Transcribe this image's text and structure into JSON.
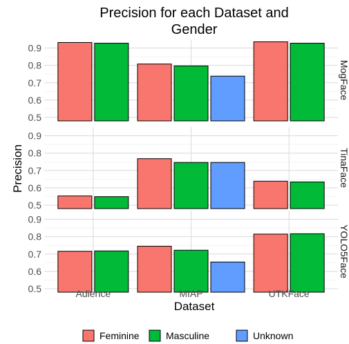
{
  "chart_data": {
    "type": "bar",
    "title": "Precision for each Dataset and Gender",
    "title_lines": [
      "Precision for each Dataset and",
      "Gender"
    ],
    "xlabel": "Dataset",
    "ylabel": "Precision",
    "categories": [
      "Adience",
      "MIAP",
      "UTKFace"
    ],
    "y_ticks": [
      "0.5",
      "0.6",
      "0.7",
      "0.8",
      "0.9"
    ],
    "ylim": [
      0.48,
      0.95
    ],
    "legend_position": "bottom",
    "legend": [
      {
        "name": "Feminine",
        "color": "#F8766D"
      },
      {
        "name": "Masculine",
        "color": "#00BA38"
      },
      {
        "name": "Unknown",
        "color": "#619CFF"
      }
    ],
    "panels": [
      {
        "label": "MogFace",
        "values": {
          "Adience": [
            0.932,
            0.928,
            null
          ],
          "MIAP": [
            0.808,
            0.797,
            0.738
          ],
          "UTKFace": [
            0.936,
            0.928,
            null
          ]
        }
      },
      {
        "label": "TinaFace",
        "values": {
          "Adience": [
            0.553,
            0.549,
            null
          ],
          "MIAP": [
            0.768,
            0.746,
            0.746
          ],
          "UTKFace": [
            0.638,
            0.634,
            null
          ]
        }
      },
      {
        "label": "YOLO5Face",
        "values": {
          "Adience": [
            0.716,
            0.718,
            null
          ],
          "MIAP": [
            0.745,
            0.722,
            0.654
          ],
          "UTKFace": [
            0.815,
            0.817,
            null
          ]
        }
      }
    ]
  }
}
